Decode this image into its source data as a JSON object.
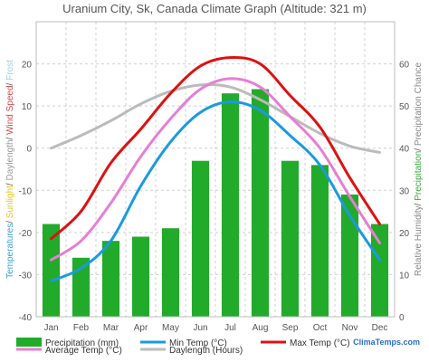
{
  "chart_data": {
    "type": "bar",
    "title": "Uranium City, Sk, Canada Climate Graph (Altitude: 321 m)",
    "categories": [
      "Jan",
      "Feb",
      "Mar",
      "Apr",
      "May",
      "Jun",
      "Jul",
      "Aug",
      "Sep",
      "Oct",
      "Nov",
      "Dec"
    ],
    "left_axis": {
      "label_parts": [
        {
          "text": "Temperatures",
          "color": "#3aa0d6"
        },
        {
          "text": "/ ",
          "color": "#555555"
        },
        {
          "text": "Sunlight",
          "color": "#e8c420"
        },
        {
          "text": "/ ",
          "color": "#555555"
        },
        {
          "text": "Daylength",
          "color": "#9a9a9a"
        },
        {
          "text": "/ ",
          "color": "#555555"
        },
        {
          "text": "Wind Speed",
          "color": "#d44a4a"
        },
        {
          "text": "/ ",
          "color": "#555555"
        },
        {
          "text": "Frost",
          "color": "#9fd0e8"
        }
      ],
      "ylim": [
        -40,
        30
      ],
      "ticks": [
        -40,
        -30,
        -20,
        -10,
        0,
        10,
        20
      ]
    },
    "right_axis": {
      "label_parts": [
        {
          "text": "Relative Humidity",
          "color": "#888888"
        },
        {
          "text": "/ ",
          "color": "#555555"
        },
        {
          "text": "Precipitation",
          "color": "#3aa63a"
        },
        {
          "text": "/ ",
          "color": "#555555"
        },
        {
          "text": "Precipitation Chance",
          "color": "#888888"
        }
      ],
      "ylim": [
        0,
        70
      ],
      "ticks": [
        0,
        10,
        20,
        30,
        40,
        50,
        60
      ]
    },
    "series": [
      {
        "name": "Precipitation (mm)",
        "type": "bar",
        "axis": "right",
        "color": "#22aa2b",
        "values": [
          22,
          14,
          18,
          19,
          21,
          37,
          53,
          54,
          37,
          36,
          29,
          22
        ]
      },
      {
        "name": "Min Temp (°C)",
        "type": "line",
        "axis": "left",
        "color": "#1a9ae0",
        "values": [
          -31.5,
          -28.5,
          -22,
          -9,
          1.5,
          8.5,
          11,
          9,
          3,
          -4,
          -16,
          -26.5
        ]
      },
      {
        "name": "Max Temp (°C)",
        "type": "line",
        "axis": "left",
        "color": "#dd1111",
        "values": [
          -21.5,
          -15,
          -3.5,
          4.5,
          13,
          19.5,
          21.5,
          20,
          12.5,
          5,
          -7,
          -18
        ]
      },
      {
        "name": "Average Temp (°C)",
        "type": "line",
        "axis": "left",
        "color": "#e77ed2",
        "values": [
          -26.5,
          -22,
          -13,
          -2,
          7,
          14,
          16.5,
          14.5,
          7.5,
          0,
          -11.5,
          -22.5
        ]
      },
      {
        "name": "Daylength (Hours)",
        "type": "line",
        "axis": "right",
        "color": "#bbbbbb",
        "values": [
          40,
          43,
          46.5,
          50.5,
          53.5,
          55,
          54.5,
          51.5,
          47.5,
          43.5,
          40.5,
          39
        ]
      }
    ],
    "legend": {
      "placement": "bottom",
      "items": [
        {
          "label": "Precipitation (mm)",
          "color": "#22aa2b",
          "kind": "bar"
        },
        {
          "label": "Min Temp (°C)",
          "color": "#1a9ae0",
          "kind": "line"
        },
        {
          "label": "Max Temp (°C)",
          "color": "#dd1111",
          "kind": "line"
        },
        {
          "label": "Average Temp (°C)",
          "color": "#e77ed2",
          "kind": "line"
        },
        {
          "label": "Daylength (Hours)",
          "color": "#bbbbbb",
          "kind": "line"
        }
      ]
    },
    "grid": true,
    "watermark": "ClimaTemps.com"
  }
}
